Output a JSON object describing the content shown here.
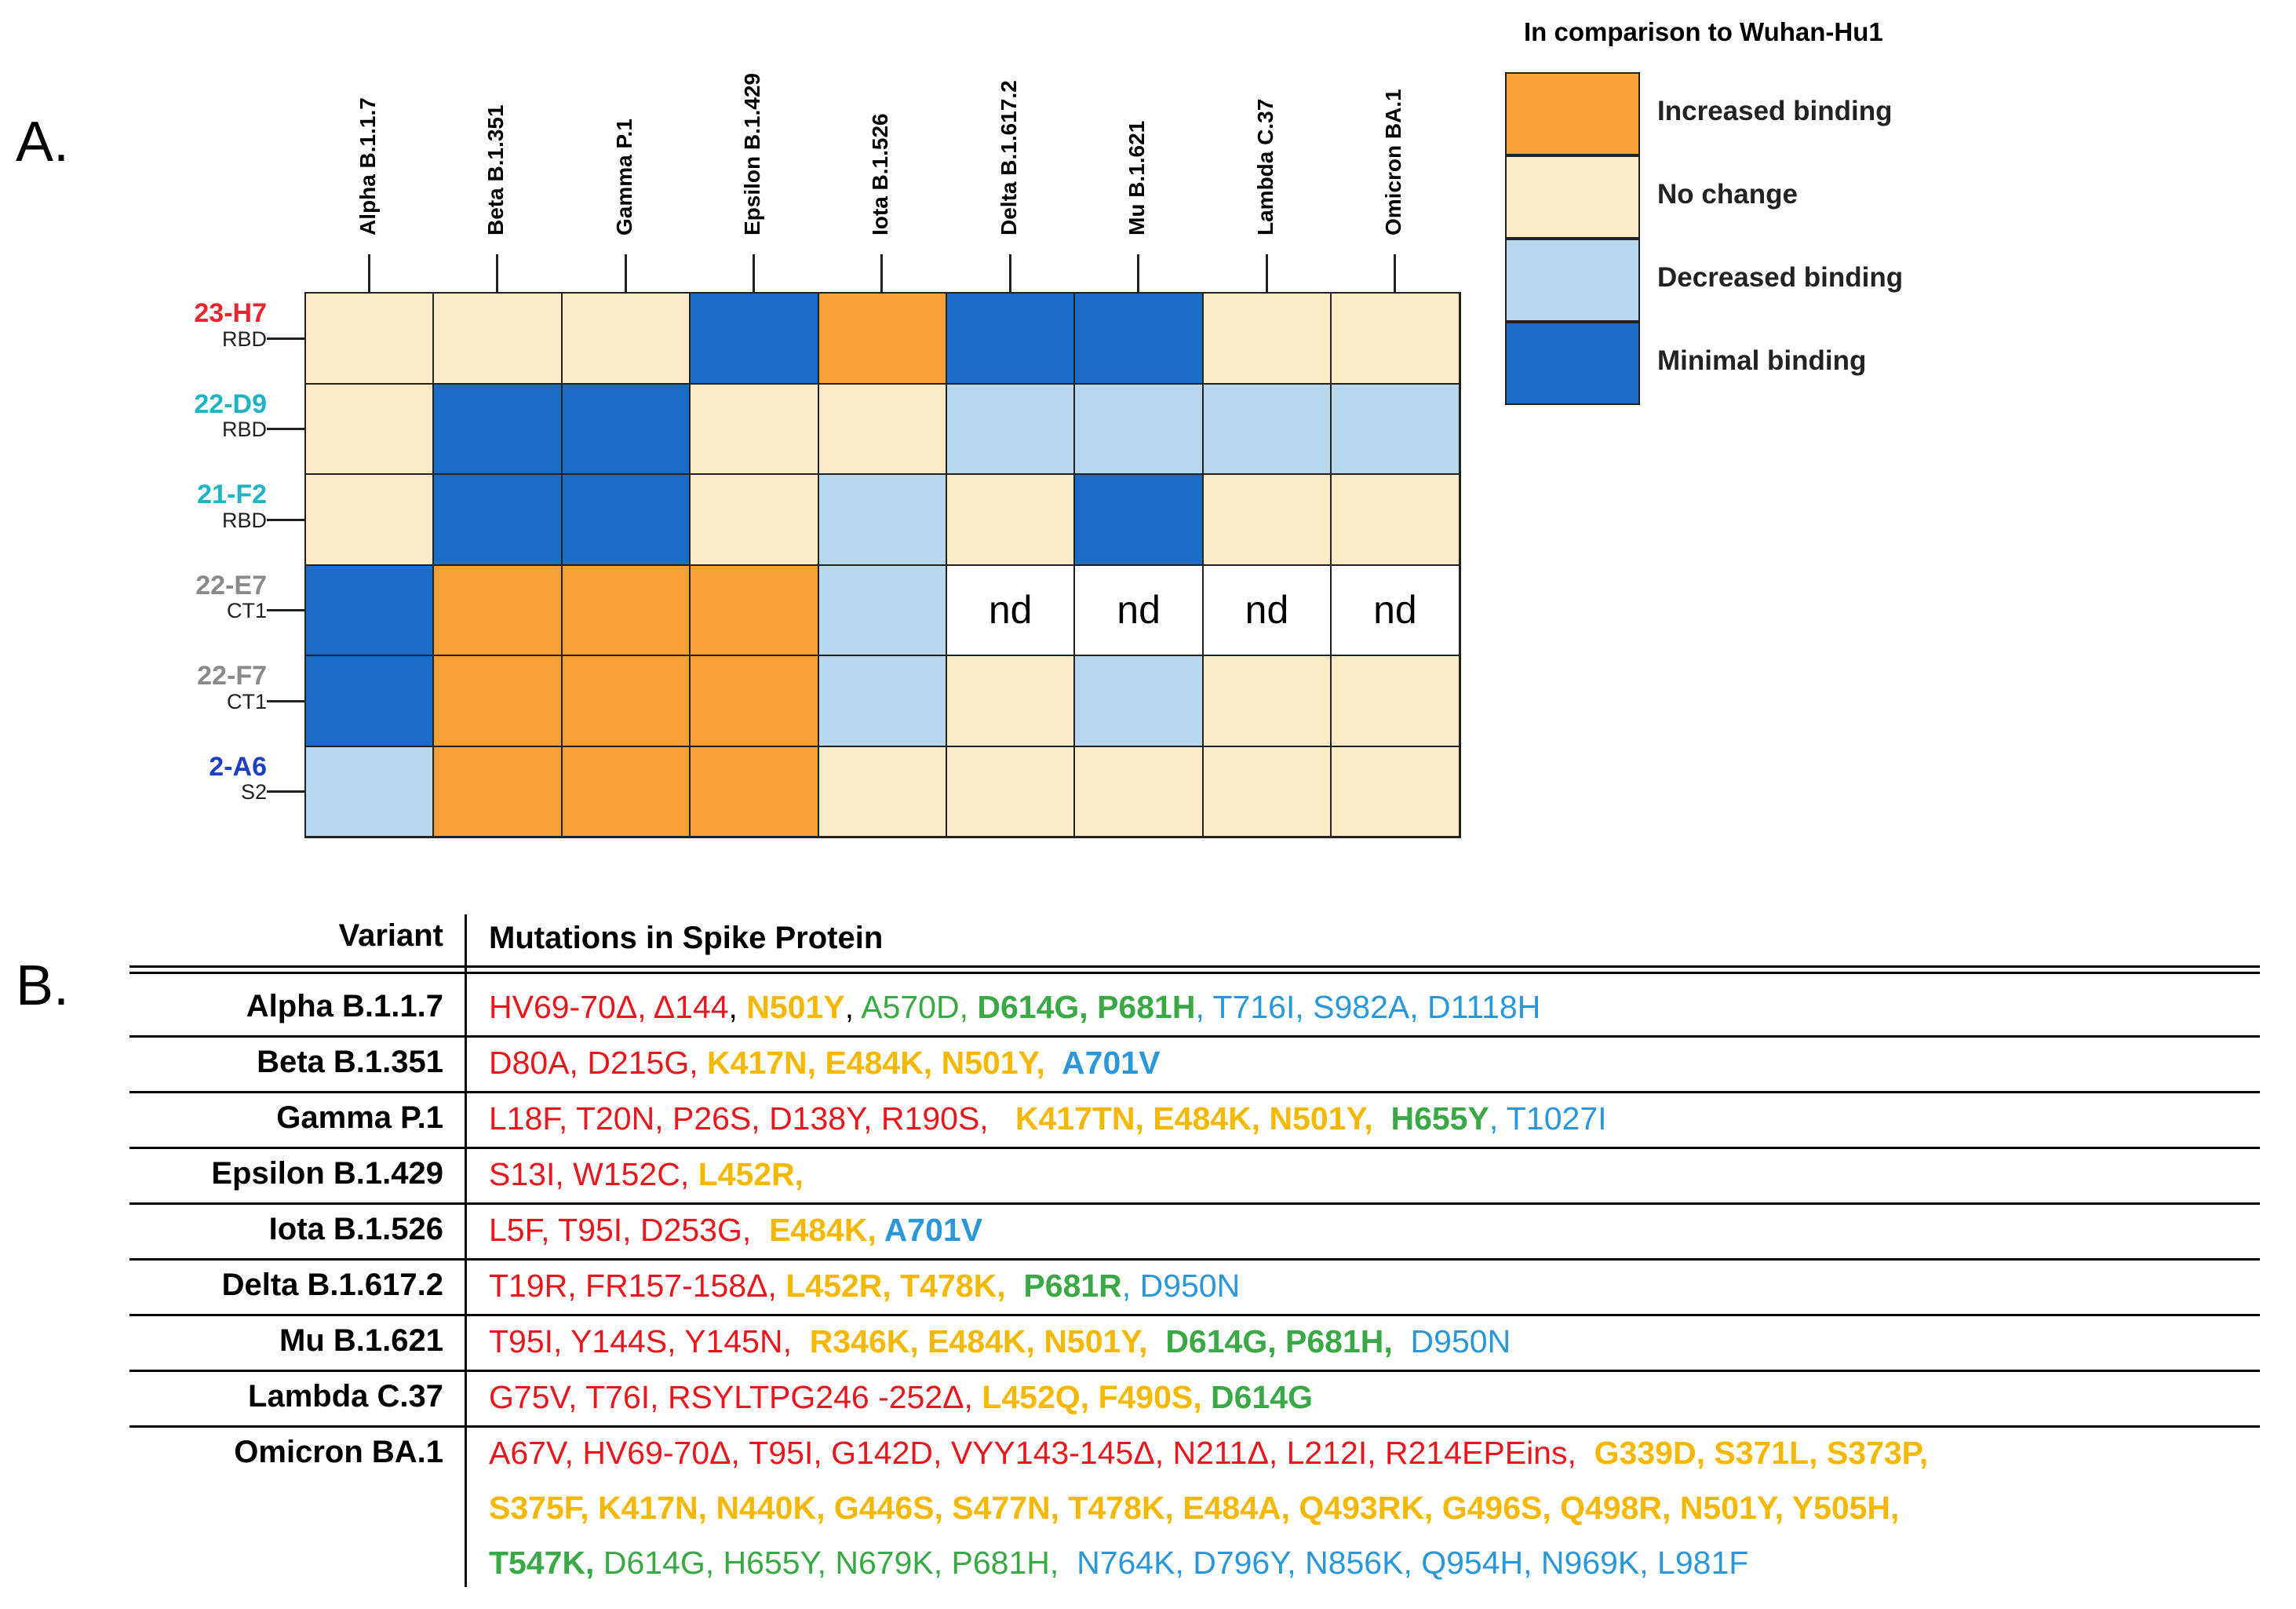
{
  "panel_a": {
    "label": "A.",
    "variants": [
      "Alpha B.1.1.7",
      "Beta B.1.351",
      "Gamma P.1",
      "Epsilon B.1.429",
      "Iota B.1.526",
      "Delta B.1.617.2",
      "Mu B.1.621",
      "Lambda C.37",
      "Omicron BA.1"
    ],
    "rows": [
      {
        "antibody": "23-H7",
        "antibody_color": "#e8262d",
        "domain": "RBD",
        "cells": [
          "nc",
          "nc",
          "nc",
          "min",
          "inc",
          "min",
          "min",
          "nc",
          "nc"
        ]
      },
      {
        "antibody": "22-D9",
        "antibody_color": "#1fb3c4",
        "domain": "RBD",
        "cells": [
          "nc",
          "min",
          "min",
          "nc",
          "nc",
          "dec",
          "dec",
          "dec",
          "dec"
        ]
      },
      {
        "antibody": "21-F2",
        "antibody_color": "#1fb3c4",
        "domain": "RBD",
        "cells": [
          "nc",
          "min",
          "min",
          "nc",
          "dec",
          "nc",
          "min",
          "nc",
          "nc"
        ]
      },
      {
        "antibody": "22-E7",
        "antibody_color": "#8a8a8a",
        "domain": "CT1",
        "cells": [
          "min",
          "inc",
          "inc",
          "inc",
          "dec",
          "nd",
          "nd",
          "nd",
          "nd"
        ]
      },
      {
        "antibody": "22-F7",
        "antibody_color": "#8a8a8a",
        "domain": "CT1",
        "cells": [
          "min",
          "inc",
          "inc",
          "inc",
          "dec",
          "nc",
          "dec",
          "nc",
          "nc"
        ]
      },
      {
        "antibody": "2-A6",
        "antibody_color": "#1f3fc4",
        "domain": "S2",
        "cells": [
          "dec",
          "inc",
          "inc",
          "inc",
          "nc",
          "nc",
          "nc",
          "nc",
          "nc"
        ]
      }
    ],
    "nd_text": "nd",
    "colors": {
      "inc": "#f8a038",
      "nc": "#fdebc8",
      "dec": "#b6d7ec",
      "min": "#1a6cc4",
      "nd": "#ffffff"
    },
    "legend": {
      "title": "In comparison to Wuhan-Hu1",
      "items": [
        {
          "key": "inc",
          "label": "Increased binding"
        },
        {
          "key": "nc",
          "label": "No change"
        },
        {
          "key": "dec",
          "label": "Decreased binding"
        },
        {
          "key": "min",
          "label": "Minimal binding"
        }
      ]
    }
  },
  "panel_b": {
    "label": "B.",
    "header_variant": "Variant",
    "header_mutations": "Mutations in Spike Protein",
    "rows": [
      {
        "variant": "Alpha B.1.1.7",
        "lines": [
          [
            {
              "t": "HV69-70Δ, Δ144",
              "c": "m-red"
            },
            {
              "t": ", ",
              "c": "m-blk"
            },
            {
              "t": "N501Y",
              "c": "m-yel"
            },
            {
              "t": ", ",
              "c": "m-blk"
            },
            {
              "t": "A570D, ",
              "c": "m-grn"
            },
            {
              "t": "D614G, P681H",
              "c": "m-grnb"
            },
            {
              "t": ", T716I, S982A, D1118H",
              "c": "m-blu"
            }
          ]
        ]
      },
      {
        "variant": "Beta B.1.351",
        "lines": [
          [
            {
              "t": "D80A, D215G, ",
              "c": "m-red"
            },
            {
              "t": "K417N, E484K, N501Y, ",
              "c": "m-yel"
            },
            {
              "t": " A701V",
              "c": "m-blub"
            }
          ]
        ]
      },
      {
        "variant": "Gamma P.1",
        "lines": [
          [
            {
              "t": "L18F, T20N, P26S, D138Y, R190S, ",
              "c": "m-red"
            },
            {
              "t": "  K417TN, E484K, N501Y, ",
              "c": "m-yel"
            },
            {
              "t": " H655Y",
              "c": "m-grnb"
            },
            {
              "t": ", T1027I",
              "c": "m-blu"
            }
          ]
        ]
      },
      {
        "variant": "Epsilon B.1.429",
        "lines": [
          [
            {
              "t": "S13I, W152C, ",
              "c": "m-red"
            },
            {
              "t": "L452R,",
              "c": "m-yel"
            }
          ]
        ]
      },
      {
        "variant": "Iota B.1.526",
        "lines": [
          [
            {
              "t": "L5F, T95I, D253G, ",
              "c": "m-red"
            },
            {
              "t": " E484K, ",
              "c": "m-yel"
            },
            {
              "t": "A701V",
              "c": "m-blub"
            }
          ]
        ]
      },
      {
        "variant": "Delta B.1.617.2",
        "lines": [
          [
            {
              "t": "T19R, FR157-158Δ, ",
              "c": "m-red"
            },
            {
              "t": "L452R, T478K, ",
              "c": "m-yel"
            },
            {
              "t": " P681R",
              "c": "m-grnb"
            },
            {
              "t": ", D950N",
              "c": "m-blu"
            }
          ]
        ]
      },
      {
        "variant": "Mu B.1.621",
        "lines": [
          [
            {
              "t": "T95I, Y144S, Y145N, ",
              "c": "m-red"
            },
            {
              "t": " R346K, E484K, N501Y, ",
              "c": "m-yel"
            },
            {
              "t": " D614G, P681H, ",
              "c": "m-grnb"
            },
            {
              "t": " D950N",
              "c": "m-blu"
            }
          ]
        ]
      },
      {
        "variant": "Lambda C.37",
        "lines": [
          [
            {
              "t": "G75V, T76I, RSYLTPG246 -252Δ, ",
              "c": "m-red"
            },
            {
              "t": "L452Q, F490S, ",
              "c": "m-yel"
            },
            {
              "t": "D614G",
              "c": "m-grnb"
            }
          ]
        ]
      },
      {
        "variant": "Omicron BA.1",
        "lines": [
          [
            {
              "t": "A67V, HV69-70Δ, T95I, G142D, VYY143-145Δ, N211Δ, L212I, R214EPEins, ",
              "c": "m-red"
            },
            {
              "t": " G339D, S371L, S373P,",
              "c": "m-yel"
            }
          ],
          [
            {
              "t": "S375F, K417N, N440K, G446S, S477N, T478K, E484A, Q493RK, G496S, Q498R, N501Y, Y505H,",
              "c": "m-yel"
            }
          ],
          [
            {
              "t": "T547K, ",
              "c": "m-grnb"
            },
            {
              "t": "D614G, H655Y, N679K, P681H, ",
              "c": "m-grn"
            },
            {
              "t": " N764K, D796Y, N856K, Q954H, N969K, L981F",
              "c": "m-blu"
            }
          ]
        ]
      }
    ]
  }
}
